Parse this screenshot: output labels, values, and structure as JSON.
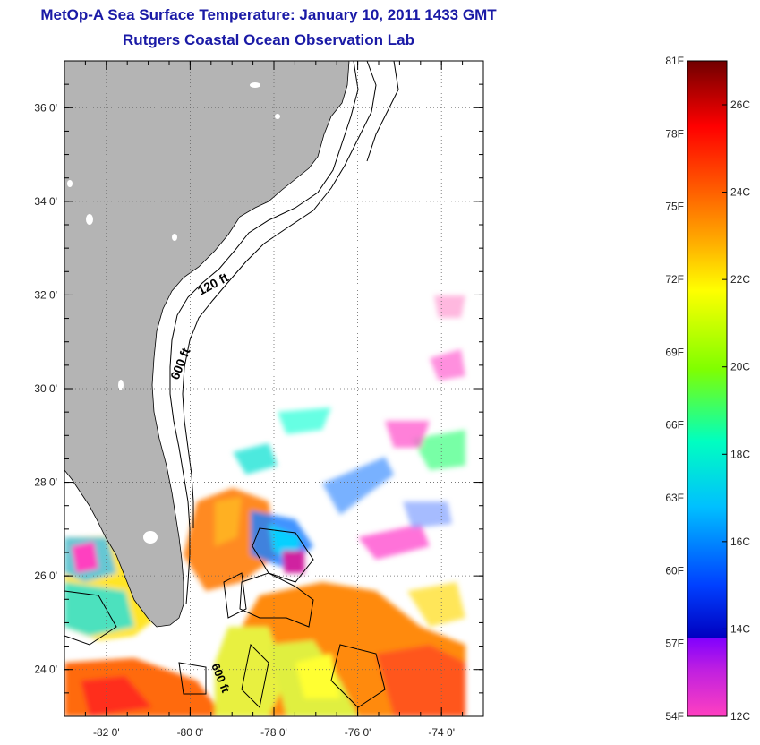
{
  "header": {
    "title": "MetOp-A Sea Surface Temperature:  January 10, 2011 1433 GMT",
    "subtitle": "Rutgers Coastal Ocean Observation Lab"
  },
  "map": {
    "lat_range": [
      23,
      37
    ],
    "lon_range": [
      -83,
      -73
    ],
    "lat_ticks": [
      {
        "value": 36,
        "label": "36 0'"
      },
      {
        "value": 34,
        "label": "34 0'"
      },
      {
        "value": 32,
        "label": "32 0'"
      },
      {
        "value": 30,
        "label": "30 0'"
      },
      {
        "value": 28,
        "label": "28 0'"
      },
      {
        "value": 26,
        "label": "26 0'"
      },
      {
        "value": 24,
        "label": "24 0'"
      }
    ],
    "lon_ticks": [
      {
        "value": -82,
        "label": "-82 0'"
      },
      {
        "value": -80,
        "label": "-80 0'"
      },
      {
        "value": -78,
        "label": "-78 0'"
      },
      {
        "value": -76,
        "label": "-76 0'"
      },
      {
        "value": -74,
        "label": "-74 0'"
      }
    ],
    "contour_labels": [
      "120 ft",
      "600 ft",
      "600 ft"
    ],
    "land_color": "#b4b4b4",
    "gridlines": true
  },
  "colorbar": {
    "fahrenheit_labels": [
      "81F",
      "78F",
      "75F",
      "72F",
      "69F",
      "66F",
      "63F",
      "60F",
      "57F",
      "54F"
    ],
    "celsius_labels": [
      "26C",
      "24C",
      "22C",
      "20C",
      "18C",
      "16C",
      "14C",
      "12C"
    ],
    "colors": [
      "#800000",
      "#ff0000",
      "#ff8000",
      "#ffff00",
      "#80ff00",
      "#00ffb0",
      "#00c0ff",
      "#0040ff",
      "#0000c0",
      "#8000ff",
      "#ff00c0",
      "#ff40c0"
    ]
  }
}
